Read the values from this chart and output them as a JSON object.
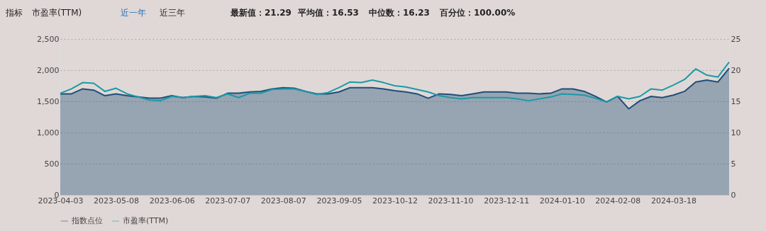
{
  "chart_data": {
    "type": "area",
    "annotations": [
      "指标",
      "市盈率(TTM)",
      "近一年",
      "近三年",
      "最新值：21.29",
      "平均值：16.53",
      "中位数：16.23",
      "百分位：100.00%"
    ],
    "categories": [
      "2023-04-03",
      null,
      null,
      null,
      null,
      "2023-05-08",
      null,
      null,
      null,
      null,
      "2023-06-06",
      null,
      null,
      null,
      null,
      "2023-07-07",
      null,
      null,
      null,
      null,
      "2023-08-07",
      null,
      null,
      null,
      null,
      "2023-09-05",
      null,
      null,
      null,
      null,
      "2023-10-12",
      null,
      null,
      null,
      null,
      "2023-11-10",
      null,
      null,
      null,
      null,
      "2023-12-11",
      null,
      null,
      null,
      null,
      "2024-01-10",
      null,
      null,
      null,
      null,
      "2024-02-08",
      null,
      null,
      null,
      null,
      "2024-03-18",
      null,
      null,
      null,
      null,
      null
    ],
    "series": [
      {
        "name": "指数点位",
        "color": "#1f4e79",
        "values": [
          1620,
          1620,
          1700,
          1680,
          1590,
          1620,
          1590,
          1570,
          1550,
          1550,
          1590,
          1560,
          1580,
          1570,
          1550,
          1630,
          1630,
          1650,
          1660,
          1700,
          1720,
          1710,
          1660,
          1620,
          1620,
          1650,
          1720,
          1720,
          1720,
          1700,
          1670,
          1650,
          1620,
          1550,
          1620,
          1610,
          1590,
          1620,
          1650,
          1650,
          1650,
          1630,
          1630,
          1620,
          1630,
          1700,
          1700,
          1660,
          1580,
          1490,
          1580,
          1380,
          1510,
          1580,
          1560,
          1600,
          1660,
          1810,
          1840,
          1810,
          2030
        ]
      },
      {
        "name": "市盈率(TTM)",
        "type": "line",
        "axis": "y2",
        "color": "#1a9aa8",
        "values": [
          16.3,
          17.0,
          18.0,
          17.9,
          16.6,
          17.1,
          16.2,
          15.7,
          15.2,
          15.1,
          15.8,
          15.6,
          15.8,
          15.9,
          15.6,
          16.2,
          15.6,
          16.3,
          16.3,
          16.9,
          17.0,
          17.0,
          16.6,
          16.1,
          16.4,
          17.2,
          18.1,
          18.0,
          18.4,
          18.0,
          17.5,
          17.3,
          16.9,
          16.5,
          15.9,
          15.6,
          15.4,
          15.6,
          15.6,
          15.6,
          15.6,
          15.4,
          15.1,
          15.4,
          15.7,
          16.2,
          16.1,
          16.0,
          15.5,
          14.9,
          15.8,
          15.4,
          15.8,
          17.0,
          16.8,
          17.6,
          18.5,
          20.2,
          19.2,
          18.9,
          21.3
        ]
      }
    ],
    "ylim": [
      0,
      2500
    ],
    "yticks": [
      0,
      500,
      {
        "value": 1000,
        "label": "1,000"
      },
      {
        "value": 1500,
        "label": "1,500"
      },
      {
        "value": 2000,
        "label": "2,000"
      },
      {
        "value": 2500,
        "label": "2,500"
      }
    ],
    "y2lim": [
      0,
      25
    ],
    "y2ticks": [
      0,
      5,
      10,
      15,
      20,
      25
    ],
    "grid": "y",
    "legend": "bottom"
  }
}
